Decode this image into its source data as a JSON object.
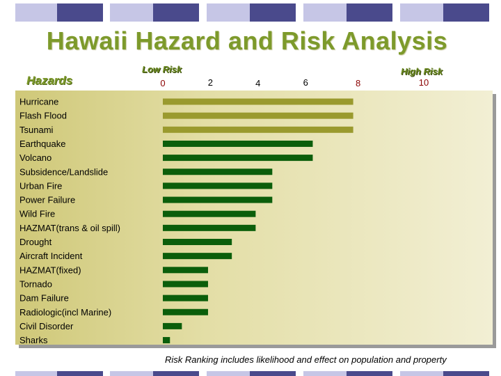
{
  "title": "Hawaii Hazard and Risk Analysis",
  "hazards_label": "Hazards",
  "low_risk_label": "Low Risk",
  "high_risk_label": "High Risk",
  "footnote": "Risk Ranking includes likelihood and effect on population and property",
  "colors": {
    "title": "#7d9a2b",
    "band_navy": "#4a4a8c",
    "band_lilac": "#c6c6e6",
    "bar_olive": "#9a9a2e",
    "bar_green": "#0b5e0b"
  },
  "chart_data": {
    "type": "bar",
    "orientation": "horizontal",
    "categories": [
      "Hurricane",
      "Flash Flood",
      "Tsunami",
      "Earthquake",
      "Volcano",
      "Subsidence/Landslide",
      "Urban Fire",
      "Power Failure",
      "Wild Fire",
      "HAZMAT(trans & oil spill)",
      "Drought",
      "Aircraft Incident",
      "HAZMAT(fixed)",
      "Tornado",
      "Dam Failure",
      "Radiologic(incl Marine)",
      "Civil Disorder",
      "Sharks"
    ],
    "values": [
      8,
      8,
      8,
      6.3,
      6.3,
      4.6,
      4.6,
      4.6,
      3.9,
      3.9,
      2.9,
      2.9,
      1.9,
      1.9,
      1.9,
      1.9,
      0.8,
      0.3
    ],
    "bar_colors": [
      "#9a9a2e",
      "#9a9a2e",
      "#9a9a2e",
      "#0b5e0b",
      "#0b5e0b",
      "#0b5e0b",
      "#0b5e0b",
      "#0b5e0b",
      "#0b5e0b",
      "#0b5e0b",
      "#0b5e0b",
      "#0b5e0b",
      "#0b5e0b",
      "#0b5e0b",
      "#0b5e0b",
      "#0b5e0b",
      "#0b5e0b",
      "#0b5e0b"
    ],
    "x_ticks": [
      {
        "value": 0,
        "label": "0",
        "color": "#8b0000"
      },
      {
        "value": 2,
        "label": "2",
        "color": "#000000"
      },
      {
        "value": 4,
        "label": "4",
        "color": "#000000"
      },
      {
        "value": 6,
        "label": "6",
        "color": "#000000"
      },
      {
        "value": 8,
        "label": "8",
        "color": "#8b0000"
      },
      {
        "value": 10,
        "label": "10",
        "color": "#8b0000"
      }
    ],
    "xlim": [
      0,
      10
    ],
    "grid": false,
    "legend": "none"
  }
}
